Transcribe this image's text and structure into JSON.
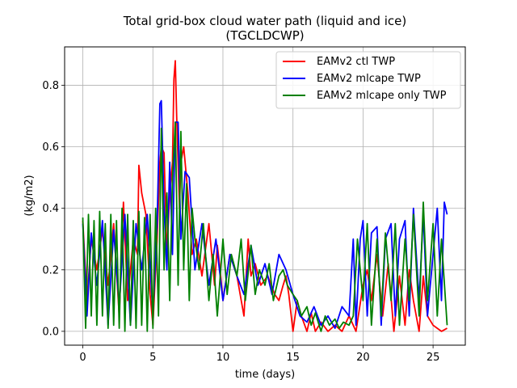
{
  "chart_data": {
    "type": "line",
    "title": "Total grid-box cloud water path (liquid and ice)",
    "subtitle": "(TGCLDCWP)",
    "xlabel": "time (days)",
    "ylabel": "(kg/m2)",
    "xlim": [
      -1.3,
      27.3
    ],
    "ylim": [
      -0.045,
      0.925
    ],
    "xticks": [
      0,
      5,
      10,
      15,
      20,
      25
    ],
    "xtick_labels": [
      "0",
      "5",
      "10",
      "15",
      "20",
      "25"
    ],
    "yticks": [
      0.0,
      0.2,
      0.4,
      0.6,
      0.8
    ],
    "ytick_labels": [
      "0.0",
      "0.2",
      "0.4",
      "0.6",
      "0.8"
    ],
    "grid": true,
    "legend_position": "top-right",
    "series": [
      {
        "name": "EAMv2 ctl TWP",
        "color": "#ff0000",
        "x": [
          0,
          0.3,
          0.6,
          1.0,
          1.4,
          1.8,
          2.2,
          2.6,
          2.9,
          3.2,
          3.6,
          3.9,
          4.0,
          4.2,
          4.5,
          4.8,
          5.0,
          5.3,
          5.5,
          5.6,
          5.8,
          6.0,
          6.2,
          6.4,
          6.5,
          6.6,
          6.7,
          6.9,
          7.0,
          7.2,
          7.5,
          7.8,
          8.1,
          8.5,
          9.0,
          9.4,
          9.6,
          9.8,
          10.0,
          10.5,
          11.0,
          11.5,
          11.8,
          12.0,
          12.3,
          12.7,
          13.2,
          13.7,
          14.0,
          14.3,
          14.5,
          14.7,
          15.0,
          15.3,
          15.6,
          16.0,
          16.3,
          16.6,
          17.0,
          17.5,
          18.0,
          18.5,
          19.0,
          19.5,
          20.0,
          20.3,
          20.6,
          21.0,
          21.4,
          21.8,
          22.2,
          22.6,
          23.0,
          23.3,
          23.6,
          24.0,
          24.3,
          24.6,
          25.0,
          25.3,
          25.6,
          26.0
        ],
        "y": [
          0.36,
          0.1,
          0.3,
          0.2,
          0.33,
          0.15,
          0.35,
          0.05,
          0.42,
          0.1,
          0.3,
          0.25,
          0.54,
          0.45,
          0.38,
          0.12,
          0.02,
          0.3,
          0.55,
          0.6,
          0.58,
          0.25,
          0.45,
          0.55,
          0.82,
          0.88,
          0.7,
          0.4,
          0.55,
          0.6,
          0.45,
          0.25,
          0.3,
          0.18,
          0.35,
          0.15,
          0.28,
          0.2,
          0.1,
          0.25,
          0.18,
          0.05,
          0.3,
          0.18,
          0.22,
          0.15,
          0.18,
          0.12,
          0.1,
          0.15,
          0.18,
          0.12,
          0.0,
          0.1,
          0.05,
          0.0,
          0.06,
          0.0,
          0.03,
          0.0,
          0.02,
          0.0,
          0.05,
          0.0,
          0.15,
          0.2,
          0.1,
          0.25,
          0.05,
          0.22,
          0.0,
          0.18,
          0.02,
          0.2,
          0.1,
          0.0,
          0.18,
          0.05,
          0.02,
          0.01,
          0.0,
          0.01
        ]
      },
      {
        "name": "EAMv2 mlcape TWP",
        "color": "#0000ff",
        "x": [
          0,
          0.3,
          0.6,
          1.0,
          1.4,
          1.8,
          2.2,
          2.6,
          3.0,
          3.4,
          3.8,
          4.2,
          4.6,
          5.0,
          5.3,
          5.5,
          5.6,
          5.8,
          6.0,
          6.2,
          6.4,
          6.6,
          6.8,
          7.0,
          7.3,
          7.6,
          8.0,
          8.5,
          9.0,
          9.5,
          10.0,
          10.5,
          11.0,
          11.5,
          12.0,
          12.5,
          13.0,
          13.5,
          14.0,
          14.5,
          15.0,
          15.5,
          16.0,
          16.5,
          17.0,
          17.5,
          18.0,
          18.5,
          19.0,
          19.3,
          19.5,
          19.8,
          20.0,
          20.3,
          20.6,
          21.0,
          21.3,
          21.6,
          22.0,
          22.3,
          22.6,
          23.0,
          23.3,
          23.6,
          24.0,
          24.3,
          24.6,
          25.0,
          25.3,
          25.6,
          25.8,
          26.0
        ],
        "y": [
          0.35,
          0.05,
          0.32,
          0.15,
          0.36,
          0.02,
          0.33,
          0.08,
          0.38,
          0.02,
          0.35,
          0.2,
          0.38,
          0.05,
          0.35,
          0.74,
          0.75,
          0.4,
          0.2,
          0.55,
          0.25,
          0.68,
          0.68,
          0.3,
          0.52,
          0.5,
          0.2,
          0.35,
          0.15,
          0.3,
          0.1,
          0.25,
          0.18,
          0.12,
          0.28,
          0.15,
          0.22,
          0.12,
          0.25,
          0.2,
          0.12,
          0.05,
          0.03,
          0.08,
          0.02,
          0.05,
          0.01,
          0.08,
          0.05,
          0.3,
          0.02,
          0.3,
          0.36,
          0.05,
          0.32,
          0.34,
          0.02,
          0.3,
          0.35,
          0.05,
          0.3,
          0.36,
          0.05,
          0.4,
          0.1,
          0.38,
          0.05,
          0.25,
          0.4,
          0.1,
          0.42,
          0.38
        ]
      },
      {
        "name": "EAMv2 mlcape only TWP",
        "color": "#008000",
        "x": [
          0,
          0.2,
          0.4,
          0.6,
          0.8,
          1.0,
          1.2,
          1.4,
          1.6,
          1.8,
          2.0,
          2.2,
          2.4,
          2.6,
          2.8,
          3.0,
          3.2,
          3.4,
          3.6,
          3.8,
          4.0,
          4.2,
          4.4,
          4.6,
          4.8,
          5.0,
          5.2,
          5.4,
          5.6,
          5.8,
          6.0,
          6.2,
          6.4,
          6.6,
          6.8,
          7.0,
          7.2,
          7.4,
          7.6,
          7.8,
          8.0,
          8.3,
          8.6,
          9.0,
          9.3,
          9.6,
          10.0,
          10.3,
          10.6,
          11.0,
          11.3,
          11.6,
          12.0,
          12.3,
          12.6,
          13.0,
          13.3,
          13.6,
          14.0,
          14.3,
          14.6,
          15.0,
          15.3,
          15.6,
          16.0,
          16.3,
          16.6,
          17.0,
          17.3,
          17.6,
          18.0,
          18.3,
          18.6,
          19.0,
          19.3,
          19.6,
          20.0,
          20.3,
          20.6,
          21.0,
          21.3,
          21.6,
          22.0,
          22.3,
          22.6,
          23.0,
          23.3,
          23.6,
          24.0,
          24.3,
          24.6,
          25.0,
          25.3,
          25.6,
          26.0
        ],
        "y": [
          0.37,
          0.01,
          0.38,
          0.05,
          0.36,
          0.02,
          0.39,
          0.05,
          0.35,
          0.01,
          0.38,
          0.02,
          0.36,
          0.01,
          0.4,
          0.0,
          0.38,
          0.02,
          0.36,
          0.01,
          0.39,
          0.02,
          0.37,
          0.0,
          0.38,
          0.01,
          0.4,
          0.05,
          0.66,
          0.2,
          0.45,
          0.1,
          0.5,
          0.68,
          0.15,
          0.65,
          0.2,
          0.48,
          0.1,
          0.4,
          0.3,
          0.2,
          0.35,
          0.1,
          0.25,
          0.05,
          0.3,
          0.12,
          0.25,
          0.18,
          0.3,
          0.1,
          0.28,
          0.12,
          0.2,
          0.15,
          0.22,
          0.1,
          0.18,
          0.2,
          0.15,
          0.12,
          0.1,
          0.05,
          0.08,
          0.02,
          0.06,
          0.0,
          0.05,
          0.02,
          0.04,
          0.01,
          0.03,
          0.02,
          0.05,
          0.3,
          0.1,
          0.35,
          0.02,
          0.3,
          0.05,
          0.32,
          0.1,
          0.35,
          0.02,
          0.3,
          0.1,
          0.38,
          0.05,
          0.42,
          0.1,
          0.35,
          0.05,
          0.3,
          0.02
        ]
      }
    ]
  }
}
